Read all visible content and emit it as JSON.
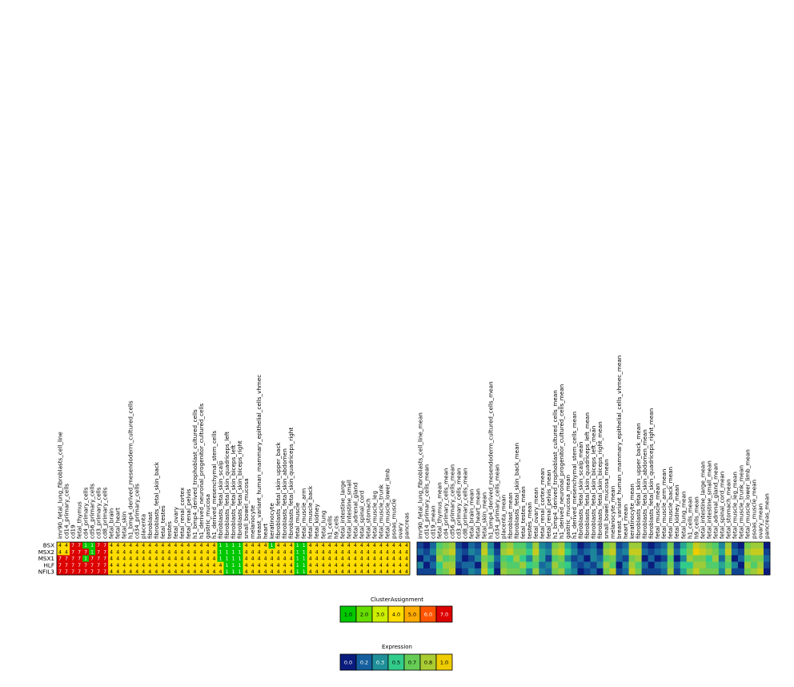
{
  "chart_data": [
    {
      "type": "heatmap",
      "name": "cluster-assignment-heatmap",
      "rows": [
        "BSX",
        "MSX2",
        "MSX1",
        "HLF",
        "NFIL3"
      ],
      "columns": [
        "imr90_fetal_lung_fibroblasts_cell_line",
        "cd14_primary_cells",
        "cd19",
        "fetal_thymus",
        "cd4_primary_cells",
        "cd56_primary_cells",
        "cd3_primary_cells",
        "cd8_primary_cells",
        "fetal_brain",
        "fetal_heart",
        "fetal_skin",
        "h1_bmp4_derived_mesendoderm_cultured_cells",
        "cd34_primary_cells",
        "placenta",
        "fibroblast",
        "fibroblasts_fetal_skin_back",
        "fetal_testes",
        "testes",
        "fetal_ovary",
        "fetal_renal_cortex",
        "fetal_renal_pelvis",
        "h1_bmp4_derived_trophoblast_cultured_cells",
        "h1_derived_neuronal_progenitor_cultured_cells",
        "gastric_mucosa",
        "h1_derived_mesenchymal_stem_cells",
        "fibroblasts_fetal_skin_scalp",
        "fibroblasts_fetal_skin_quadriceps_left",
        "fibroblasts_fetal_skin_biceps_left",
        "fibroblasts_fetal_skin_biceps_right",
        "small_bowel_mucosa",
        "melanocyte",
        "breast_variant_human_mammary_epithelial_cells_vhmec",
        "heart",
        "keratinocyte",
        "fibroblasts_fetal_skin_upper_back",
        "fibroblasts_fetal_skin_abdomen",
        "fibroblasts_fetal_skin_quadriceps_right",
        "fetal_muscle",
        "fetal_muscle_arm",
        "fetal_muscle_back",
        "fetal_kidney",
        "fetal_lung",
        "h1_cells",
        "h9_cells",
        "fetal_intestine_large",
        "fetal_intestine_small",
        "fetal_adrenal_gland",
        "fetal_spinal_cord",
        "fetal_stomach",
        "fetal_muscle_leg",
        "fetal_muscle_trunk",
        "fetal_muscle_lower_limb",
        "psoas_muscle",
        "ovary",
        "pancreas"
      ],
      "values": [
        [
          4,
          4,
          7,
          7,
          1,
          1,
          7,
          7,
          4,
          4,
          4,
          4,
          4,
          4,
          4,
          4,
          4,
          4,
          4,
          4,
          4,
          4,
          4,
          4,
          4,
          1,
          1,
          1,
          1,
          4,
          4,
          4,
          4,
          1,
          4,
          4,
          4,
          1,
          1,
          4,
          4,
          4,
          4,
          4,
          4,
          4,
          4,
          4,
          4,
          4,
          4,
          4,
          4,
          4,
          4
        ],
        [
          4,
          4,
          7,
          7,
          7,
          1,
          7,
          7,
          4,
          4,
          4,
          4,
          4,
          4,
          4,
          4,
          4,
          4,
          4,
          4,
          4,
          4,
          4,
          4,
          4,
          1,
          1,
          1,
          1,
          4,
          4,
          4,
          4,
          4,
          4,
          4,
          4,
          1,
          1,
          4,
          4,
          4,
          4,
          4,
          4,
          4,
          4,
          4,
          4,
          4,
          4,
          4,
          4,
          4,
          4
        ],
        [
          7,
          7,
          7,
          7,
          1,
          7,
          7,
          7,
          4,
          4,
          4,
          4,
          4,
          4,
          4,
          4,
          4,
          4,
          4,
          4,
          4,
          4,
          4,
          4,
          4,
          1,
          1,
          1,
          1,
          4,
          4,
          4,
          4,
          4,
          4,
          4,
          4,
          1,
          1,
          4,
          4,
          4,
          4,
          4,
          4,
          4,
          4,
          4,
          4,
          4,
          4,
          4,
          4,
          4,
          4
        ],
        [
          7,
          7,
          7,
          7,
          7,
          7,
          7,
          7,
          4,
          4,
          4,
          4,
          4,
          4,
          4,
          4,
          4,
          4,
          4,
          4,
          4,
          4,
          4,
          4,
          4,
          4,
          1,
          1,
          1,
          4,
          4,
          4,
          4,
          4,
          4,
          4,
          4,
          1,
          1,
          4,
          4,
          4,
          4,
          4,
          4,
          4,
          4,
          4,
          4,
          4,
          4,
          4,
          4,
          4,
          4
        ],
        [
          7,
          7,
          7,
          7,
          7,
          7,
          7,
          7,
          4,
          4,
          4,
          4,
          4,
          4,
          4,
          4,
          4,
          4,
          4,
          4,
          4,
          4,
          4,
          4,
          4,
          4,
          1,
          1,
          1,
          4,
          4,
          4,
          4,
          4,
          4,
          4,
          4,
          1,
          1,
          4,
          4,
          4,
          4,
          4,
          4,
          4,
          4,
          4,
          4,
          4,
          4,
          4,
          4,
          4,
          4
        ]
      ],
      "cell_labels": true
    },
    {
      "type": "heatmap",
      "name": "expression-heatmap",
      "rows": [
        "BSX",
        "MSX2",
        "MSX1",
        "HLF",
        "NFIL3"
      ],
      "columns": [
        "imr90_fetal_lung_fibroblasts_cell_line_mean",
        "cd14_primary_cells_mean",
        "cd19_mean",
        "fetal_thymus_mean",
        "cd4_primary_cells_mean",
        "cd56_primary_cells_mean",
        "cd3_primary_cells_mean",
        "cd8_primary_cells_mean",
        "fetal_brain_mean",
        "fetal_heart_mean",
        "fetal_skin_mean",
        "h1_bmp4_derived_mesendoderm_cultured_cells_mean",
        "cd34_primary_cells_mean",
        "placenta_mean",
        "fibroblast_mean",
        "fibroblasts_fetal_skin_back_mean",
        "fetal_testes_mean",
        "testes_mean",
        "fetal_ovary_mean",
        "fetal_renal_cortex_mean",
        "fetal_renal_pelvis_mean",
        "h1_bmp4_derived_trophoblast_cultured_cells_mean",
        "h1_derived_neuronal_progenitor_cultured_cells_mean",
        "gastric_mucosa_mean",
        "h1_derived_mesenchymal_stem_cells_mean",
        "fibroblasts_fetal_skin_scalp_mean",
        "fibroblasts_fetal_skin_quadriceps_left_mean",
        "fibroblasts_fetal_skin_biceps_left_mean",
        "fibroblasts_fetal_skin_biceps_right_mean",
        "small_bowel_mucosa_mean",
        "melanocyte_mean",
        "breast_variant_human_mammary_epithelial_cells_vhmec_mean",
        "heart_mean",
        "keratinocyte_mean",
        "fibroblasts_fetal_skin_upper_back_mean",
        "fibroblasts_fetal_skin_abdomen_mean",
        "fibroblasts_fetal_skin_quadriceps_right_mean",
        "fetal_muscle_mean",
        "fetal_muscle_arm_mean",
        "fetal_muscle_back_mean",
        "fetal_kidney_mean",
        "fetal_lung_mean",
        "h1_cells_mean",
        "h9_cells_mean",
        "fetal_intestine_large_mean",
        "fetal_intestine_small_mean",
        "fetal_adrenal_gland_mean",
        "fetal_spinal_cord_mean",
        "fetal_stomach_mean",
        "fetal_muscle_leg_mean",
        "fetal_muscle_trunk_mean",
        "fetal_muscle_lower_limb_mean",
        "psoas_muscle_mean",
        "ovary_mean",
        "pancreas_mean"
      ],
      "values": [
        [
          0.1,
          0.0,
          0.2,
          0.6,
          0.7,
          0.8,
          0.1,
          0.0,
          0.2,
          0.1,
          0.8,
          0.3,
          0.0,
          0.7,
          0.8,
          0.6,
          0.6,
          0.4,
          0.8,
          0.3,
          0.2,
          0.7,
          0.8,
          0.4,
          0.2,
          0.0,
          0.1,
          0.2,
          0.0,
          0.7,
          0.8,
          0.1,
          0.2,
          0.8,
          0.8,
          0.1,
          0.0,
          0.1,
          0.2,
          0.7,
          0.1,
          0.4,
          0.6,
          0.9,
          0.8,
          0.7,
          0.6,
          0.3,
          0.8,
          0.1,
          0.0,
          0.7,
          0.8,
          0.8,
          0.0
        ],
        [
          0.2,
          0.1,
          0.3,
          0.7,
          0.8,
          0.9,
          0.2,
          0.1,
          0.3,
          0.2,
          0.9,
          0.4,
          0.1,
          0.8,
          0.9,
          0.7,
          0.7,
          0.5,
          0.9,
          0.4,
          0.3,
          0.8,
          0.9,
          0.5,
          0.3,
          0.1,
          0.2,
          0.3,
          0.1,
          0.8,
          0.9,
          0.2,
          0.3,
          0.9,
          0.9,
          0.2,
          0.1,
          0.2,
          0.3,
          0.8,
          0.2,
          0.5,
          0.7,
          1.0,
          0.9,
          0.8,
          0.7,
          0.4,
          0.9,
          0.2,
          0.1,
          0.8,
          0.9,
          0.9,
          0.1
        ],
        [
          0.0,
          0.2,
          0.1,
          0.8,
          0.6,
          0.7,
          0.2,
          0.0,
          0.1,
          0.3,
          0.7,
          0.6,
          0.2,
          0.6,
          0.5,
          0.8,
          0.5,
          0.3,
          0.7,
          0.4,
          0.1,
          0.6,
          0.7,
          0.3,
          0.1,
          0.2,
          0.0,
          0.3,
          0.2,
          0.6,
          0.7,
          0.2,
          0.1,
          0.7,
          0.8,
          0.0,
          0.2,
          0.0,
          0.1,
          0.6,
          0.0,
          0.3,
          0.8,
          0.7,
          0.7,
          0.5,
          0.8,
          0.2,
          0.7,
          0.0,
          0.2,
          0.6,
          0.7,
          0.7,
          0.2
        ],
        [
          0.3,
          0.0,
          0.2,
          0.5,
          0.8,
          0.8,
          0.1,
          0.2,
          0.2,
          0.0,
          0.8,
          0.4,
          0.1,
          0.7,
          0.6,
          0.6,
          0.8,
          0.5,
          0.6,
          0.2,
          0.3,
          0.8,
          0.6,
          0.5,
          0.2,
          0.1,
          0.2,
          0.1,
          0.3,
          0.8,
          0.6,
          0.0,
          0.3,
          0.8,
          0.6,
          0.2,
          0.0,
          0.2,
          0.3,
          0.7,
          0.2,
          0.5,
          0.5,
          0.8,
          0.8,
          0.6,
          0.6,
          0.4,
          0.6,
          0.3,
          0.0,
          0.8,
          0.6,
          0.8,
          0.1
        ],
        [
          0.1,
          0.1,
          0.1,
          0.6,
          0.7,
          0.9,
          0.0,
          0.1,
          0.3,
          0.2,
          0.9,
          0.5,
          0.0,
          0.8,
          0.7,
          0.7,
          0.6,
          0.3,
          0.8,
          0.3,
          0.2,
          0.7,
          0.8,
          0.4,
          0.3,
          0.0,
          0.1,
          0.2,
          0.0,
          0.7,
          0.9,
          0.1,
          0.2,
          0.9,
          0.7,
          0.1,
          0.1,
          0.1,
          0.2,
          0.8,
          0.1,
          0.4,
          0.7,
          0.9,
          0.7,
          0.7,
          0.7,
          0.3,
          0.8,
          0.1,
          0.1,
          0.7,
          0.8,
          0.9,
          0.0
        ]
      ]
    }
  ],
  "legends": {
    "cluster": {
      "title": "ClusterAssignment",
      "labels": [
        "1.0",
        "2.0",
        "3.0",
        "4.0",
        "5.0",
        "6.0",
        "7.0"
      ],
      "colors": [
        "#00c800",
        "#66dd00",
        "#ccee00",
        "#ffdd00",
        "#ffaa00",
        "#ff5500",
        "#dd0000"
      ]
    },
    "expression": {
      "title": "Expression",
      "labels": [
        "0.0",
        "0.2",
        "0.3",
        "0.5",
        "0.7",
        "0.8",
        "1.0"
      ],
      "colors": [
        "#0a1c7d",
        "#155f9e",
        "#1f8f99",
        "#32cc8a",
        "#66cc55",
        "#aacc33",
        "#eecc00"
      ]
    }
  }
}
